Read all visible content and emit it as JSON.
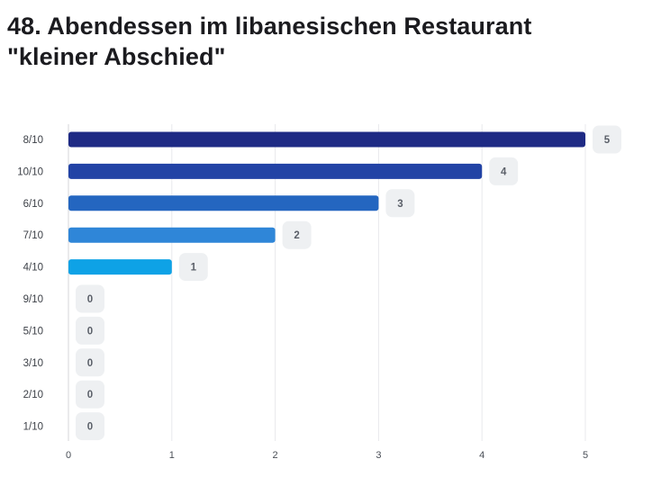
{
  "title_line1": "48. Abendessen im libanesischen Restaurant",
  "title_line2": "\"kleiner Abschied\"",
  "chart_data": {
    "type": "bar",
    "orientation": "horizontal",
    "categories": [
      "8/10",
      "10/10",
      "6/10",
      "7/10",
      "4/10",
      "9/10",
      "5/10",
      "3/10",
      "2/10",
      "1/10"
    ],
    "values": [
      5,
      4,
      3,
      2,
      1,
      0,
      0,
      0,
      0,
      0
    ],
    "colors": [
      "#1e2a84",
      "#2243a5",
      "#2466c0",
      "#2f86d8",
      "#0ea2e6",
      "#0ea2e6",
      "#0ea2e6",
      "#0ea2e6",
      "#0ea2e6",
      "#0ea2e6"
    ],
    "xlim": [
      0,
      5
    ],
    "xticks": [
      0,
      1,
      2,
      3,
      4,
      5
    ],
    "grid": true,
    "title": "48. Abendessen im libanesischen Restaurant \"kleiner Abschied\""
  }
}
